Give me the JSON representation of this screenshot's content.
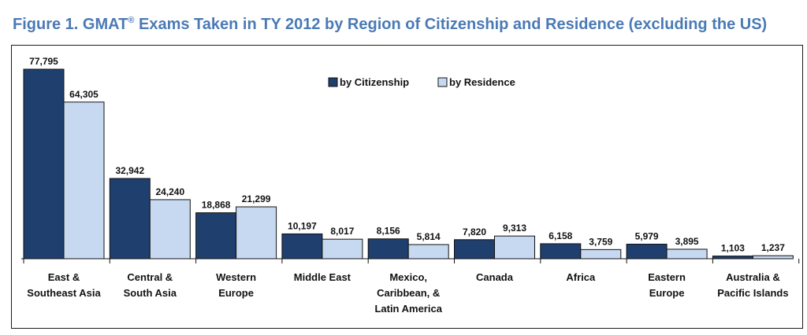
{
  "title": {
    "prefix": "Figure 1. GMAT",
    "registered": "®",
    "suffix": " Exams Taken in TY 2012 by Region of Citizenship and Residence (excluding the US)"
  },
  "colors": {
    "title": "#4a7ab5",
    "citizenship": "#1f3f6e",
    "residence": "#c6d9f1"
  },
  "chart_data": {
    "type": "bar",
    "categories": [
      [
        "East &",
        "Southeast Asia"
      ],
      [
        "Central &",
        "South Asia"
      ],
      [
        "Western",
        "Europe"
      ],
      [
        "Middle East"
      ],
      [
        "Mexico,",
        "Caribbean, &",
        "Latin America"
      ],
      [
        "Canada"
      ],
      [
        "Africa"
      ],
      [
        "Eastern",
        "Europe"
      ],
      [
        "Australia &",
        "Pacific Islands"
      ]
    ],
    "series": [
      {
        "name": "by Citizenship",
        "color": "#1f3f6e",
        "values": [
          77795,
          32942,
          18868,
          10197,
          8156,
          7820,
          6158,
          5979,
          1103
        ],
        "labels": [
          "77,795",
          "32,942",
          "18,868",
          "10,197",
          "8,156",
          "7,820",
          "6,158",
          "5,979",
          "1,103"
        ]
      },
      {
        "name": "by Residence",
        "color": "#c6d9f1",
        "values": [
          64305,
          24240,
          21299,
          8017,
          5814,
          9313,
          3759,
          3895,
          1237
        ],
        "labels": [
          "64,305",
          "24,240",
          "21,299",
          "8,017",
          "5,814",
          "9,313",
          "3,759",
          "3,895",
          "1,237"
        ]
      }
    ],
    "xlabel": "",
    "ylabel": "",
    "ylim": [
      0,
      80000
    ],
    "grid": false,
    "legend_position": "top-center"
  }
}
